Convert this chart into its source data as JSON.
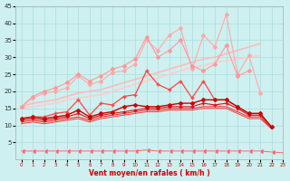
{
  "xlabel": "Vent moyen/en rafales ( km/h )",
  "background_color": "#cef0f0",
  "grid_color": "#aadddd",
  "xlim": [
    -0.5,
    23
  ],
  "ylim": [
    0,
    45
  ],
  "yticks": [
    5,
    10,
    15,
    20,
    25,
    30,
    35,
    40,
    45
  ],
  "xticks": [
    0,
    1,
    2,
    3,
    4,
    5,
    6,
    7,
    8,
    9,
    10,
    11,
    12,
    13,
    14,
    15,
    16,
    17,
    18,
    19,
    20,
    21,
    22,
    23
  ],
  "lines": [
    {
      "y": [
        15.5,
        16.5,
        17.0,
        17.5,
        18.5,
        19.5,
        20.0,
        20.5,
        21.5,
        22.5,
        23.5,
        24.5,
        25.5,
        26.5,
        27.5,
        28.5,
        29.5,
        30.0,
        31.0,
        32.0,
        33.0,
        34.0,
        null,
        null
      ],
      "color": "#ffbbbb",
      "linewidth": 1.2,
      "marker": null,
      "markersize": 0,
      "zorder": 2
    },
    {
      "y": [
        15.0,
        15.5,
        16.0,
        16.5,
        17.5,
        18.0,
        18.5,
        19.0,
        20.0,
        21.0,
        22.0,
        23.0,
        24.0,
        25.0,
        26.0,
        27.0,
        27.5,
        28.5,
        29.0,
        29.5,
        30.0,
        30.5,
        null,
        null
      ],
      "color": "#ffcccc",
      "linewidth": 1.2,
      "marker": null,
      "markersize": 0,
      "zorder": 2
    },
    {
      "y": [
        15.5,
        18.0,
        19.5,
        20.0,
        21.0,
        24.5,
        22.0,
        23.0,
        25.5,
        26.0,
        28.0,
        35.0,
        32.0,
        36.5,
        38.5,
        26.5,
        36.5,
        33.0,
        42.5,
        25.0,
        30.5,
        19.5,
        null,
        null
      ],
      "color": "#ffaaaa",
      "linewidth": 0.8,
      "marker": "D",
      "markersize": 2.0,
      "zorder": 3
    },
    {
      "y": [
        15.5,
        18.5,
        20.0,
        21.0,
        22.5,
        25.0,
        23.0,
        24.5,
        26.5,
        27.5,
        29.5,
        36.0,
        30.0,
        32.0,
        35.0,
        27.5,
        26.0,
        28.0,
        33.5,
        24.5,
        26.0,
        null,
        null,
        null
      ],
      "color": "#ff9999",
      "linewidth": 0.8,
      "marker": "D",
      "markersize": 2.0,
      "zorder": 3
    },
    {
      "y": [
        12.0,
        12.5,
        12.5,
        13.5,
        14.0,
        17.5,
        13.0,
        16.5,
        16.0,
        18.5,
        19.0,
        26.0,
        22.0,
        20.5,
        23.0,
        18.0,
        23.0,
        17.5,
        17.5,
        15.5,
        13.5,
        13.5,
        null,
        null
      ],
      "color": "#ff4444",
      "linewidth": 0.9,
      "marker": "+",
      "markersize": 3.5,
      "zorder": 4
    },
    {
      "y": [
        12.0,
        12.5,
        12.0,
        12.5,
        13.0,
        14.5,
        12.5,
        13.5,
        14.0,
        15.5,
        16.0,
        15.5,
        15.5,
        16.0,
        16.5,
        16.5,
        17.5,
        17.5,
        17.5,
        15.5,
        13.5,
        13.5,
        9.5,
        null
      ],
      "color": "#cc0000",
      "linewidth": 1.0,
      "marker": "D",
      "markersize": 2.0,
      "zorder": 5
    },
    {
      "y": [
        11.5,
        12.0,
        11.5,
        12.0,
        12.5,
        13.5,
        12.0,
        13.0,
        13.5,
        14.0,
        14.5,
        15.0,
        15.0,
        15.5,
        15.5,
        15.5,
        16.5,
        16.0,
        16.5,
        15.0,
        13.0,
        13.0,
        9.5,
        null
      ],
      "color": "#dd1111",
      "linewidth": 0.8,
      "marker": "+",
      "markersize": 2.5,
      "zorder": 4
    },
    {
      "y": [
        11.0,
        11.5,
        11.0,
        11.5,
        12.0,
        12.5,
        11.5,
        12.5,
        13.0,
        13.5,
        14.0,
        14.5,
        14.5,
        15.0,
        15.0,
        15.0,
        15.5,
        15.5,
        15.5,
        14.0,
        12.5,
        12.5,
        9.0,
        null
      ],
      "color": "#ee2222",
      "linewidth": 0.7,
      "marker": null,
      "markersize": 0,
      "zorder": 3
    },
    {
      "y": [
        10.5,
        11.0,
        10.5,
        11.0,
        11.5,
        12.0,
        11.0,
        12.0,
        12.5,
        13.0,
        13.5,
        14.0,
        14.0,
        14.5,
        14.5,
        14.5,
        15.0,
        15.0,
        15.0,
        13.5,
        12.0,
        12.0,
        9.0,
        null
      ],
      "color": "#ff3333",
      "linewidth": 0.7,
      "marker": null,
      "markersize": 0,
      "zorder": 2
    },
    {
      "y": [
        2.5,
        2.5,
        2.5,
        2.5,
        2.5,
        2.5,
        2.5,
        2.5,
        2.5,
        2.5,
        2.5,
        2.8,
        2.5,
        2.5,
        2.5,
        2.5,
        2.5,
        2.5,
        2.5,
        2.5,
        2.5,
        2.5,
        2.2,
        2.0
      ],
      "color": "#ff6666",
      "linewidth": 0.7,
      "marker": 4,
      "markersize": 3.0,
      "zorder": 1
    }
  ]
}
